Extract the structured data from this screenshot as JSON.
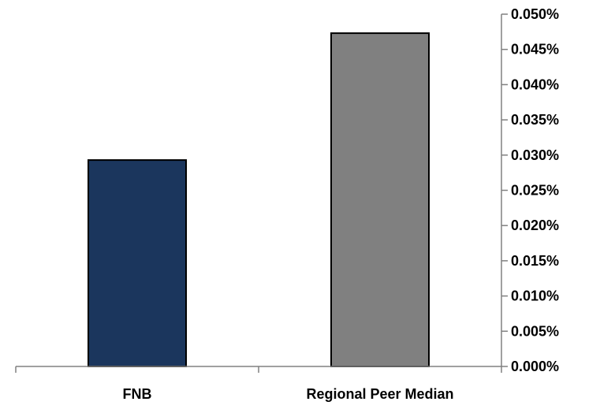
{
  "chart_data": {
    "type": "bar",
    "categories": [
      "FNB",
      "Regional Peer Median"
    ],
    "values": [
      0.0293,
      0.0473
    ],
    "bar_colors": [
      "#1b365d",
      "#808080"
    ],
    "axis_color": "#808080",
    "bar_outline_color": "#000000",
    "y_axis_position": "right",
    "ylim": [
      0,
      0.05
    ],
    "y_ticks": [
      0.0,
      0.005,
      0.01,
      0.015,
      0.02,
      0.025,
      0.03,
      0.035,
      0.04,
      0.045,
      0.05
    ],
    "y_tick_labels": [
      "0.000%",
      "0.005%",
      "0.010%",
      "0.015%",
      "0.020%",
      "0.025%",
      "0.030%",
      "0.035%",
      "0.040%",
      "0.045%",
      "0.050%"
    ],
    "grid": false,
    "title": "",
    "xlabel": "",
    "ylabel": ""
  }
}
